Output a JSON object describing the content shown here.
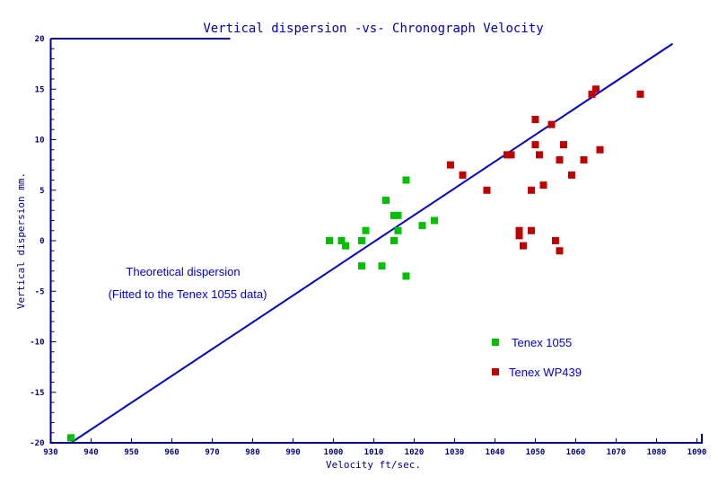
{
  "chart_data": {
    "type": "scatter",
    "title": "Vertical dispersion -vs- Chronograph Velocity",
    "xlabel": "Velocity ft/sec.",
    "ylabel": "Vertical dispersion mm.",
    "xlim": [
      930,
      1090
    ],
    "ylim": [
      -20,
      20
    ],
    "xticks": [
      930,
      940,
      950,
      960,
      970,
      980,
      990,
      1000,
      1010,
      1020,
      1030,
      1040,
      1050,
      1060,
      1070,
      1080,
      1090
    ],
    "yticks": [
      -20,
      -15,
      -10,
      -5,
      0,
      5,
      10,
      15,
      20
    ],
    "grid": false,
    "legend_placement": "bottom-right",
    "series": [
      {
        "name": "Tenex 1055",
        "color": "#00c000",
        "points": [
          [
            935,
            -19.5
          ],
          [
            999,
            0
          ],
          [
            1002,
            0
          ],
          [
            1003,
            -0.5
          ],
          [
            1007,
            0
          ],
          [
            1008,
            1
          ],
          [
            1007,
            -2.5
          ],
          [
            1012,
            -2.5
          ],
          [
            1013,
            4
          ],
          [
            1015,
            2.5
          ],
          [
            1016,
            2.5
          ],
          [
            1015,
            0
          ],
          [
            1016,
            1
          ],
          [
            1018,
            6
          ],
          [
            1018,
            -3.5
          ],
          [
            1022,
            1.5
          ],
          [
            1025,
            2
          ]
        ]
      },
      {
        "name": "Tenex WP439",
        "color": "#c00000",
        "points": [
          [
            1029,
            7.5
          ],
          [
            1032,
            6.5
          ],
          [
            1038,
            5
          ],
          [
            1043,
            8.5
          ],
          [
            1044,
            8.5
          ],
          [
            1050,
            12
          ],
          [
            1054,
            11.5
          ],
          [
            1050,
            9.5
          ],
          [
            1057,
            9.5
          ],
          [
            1051,
            8.5
          ],
          [
            1056,
            8
          ],
          [
            1062,
            8
          ],
          [
            1066,
            9
          ],
          [
            1059,
            6.5
          ],
          [
            1052,
            5.5
          ],
          [
            1049,
            5
          ],
          [
            1046,
            1
          ],
          [
            1046,
            0.5
          ],
          [
            1049,
            1
          ],
          [
            1047,
            -0.5
          ],
          [
            1055,
            0
          ],
          [
            1056,
            -1
          ],
          [
            1065,
            15
          ],
          [
            1064,
            14.5
          ],
          [
            1076,
            14.5
          ]
        ]
      }
    ],
    "fit_line": {
      "color": "#0000cc",
      "points": [
        [
          935,
          -20
        ],
        [
          1084,
          19.5
        ]
      ]
    },
    "annotations": [
      "Theoretical dispersion",
      "(Fitted to the Tenex 1055 data)"
    ],
    "axis_color": "#000080",
    "text_color": "#0000cc"
  }
}
